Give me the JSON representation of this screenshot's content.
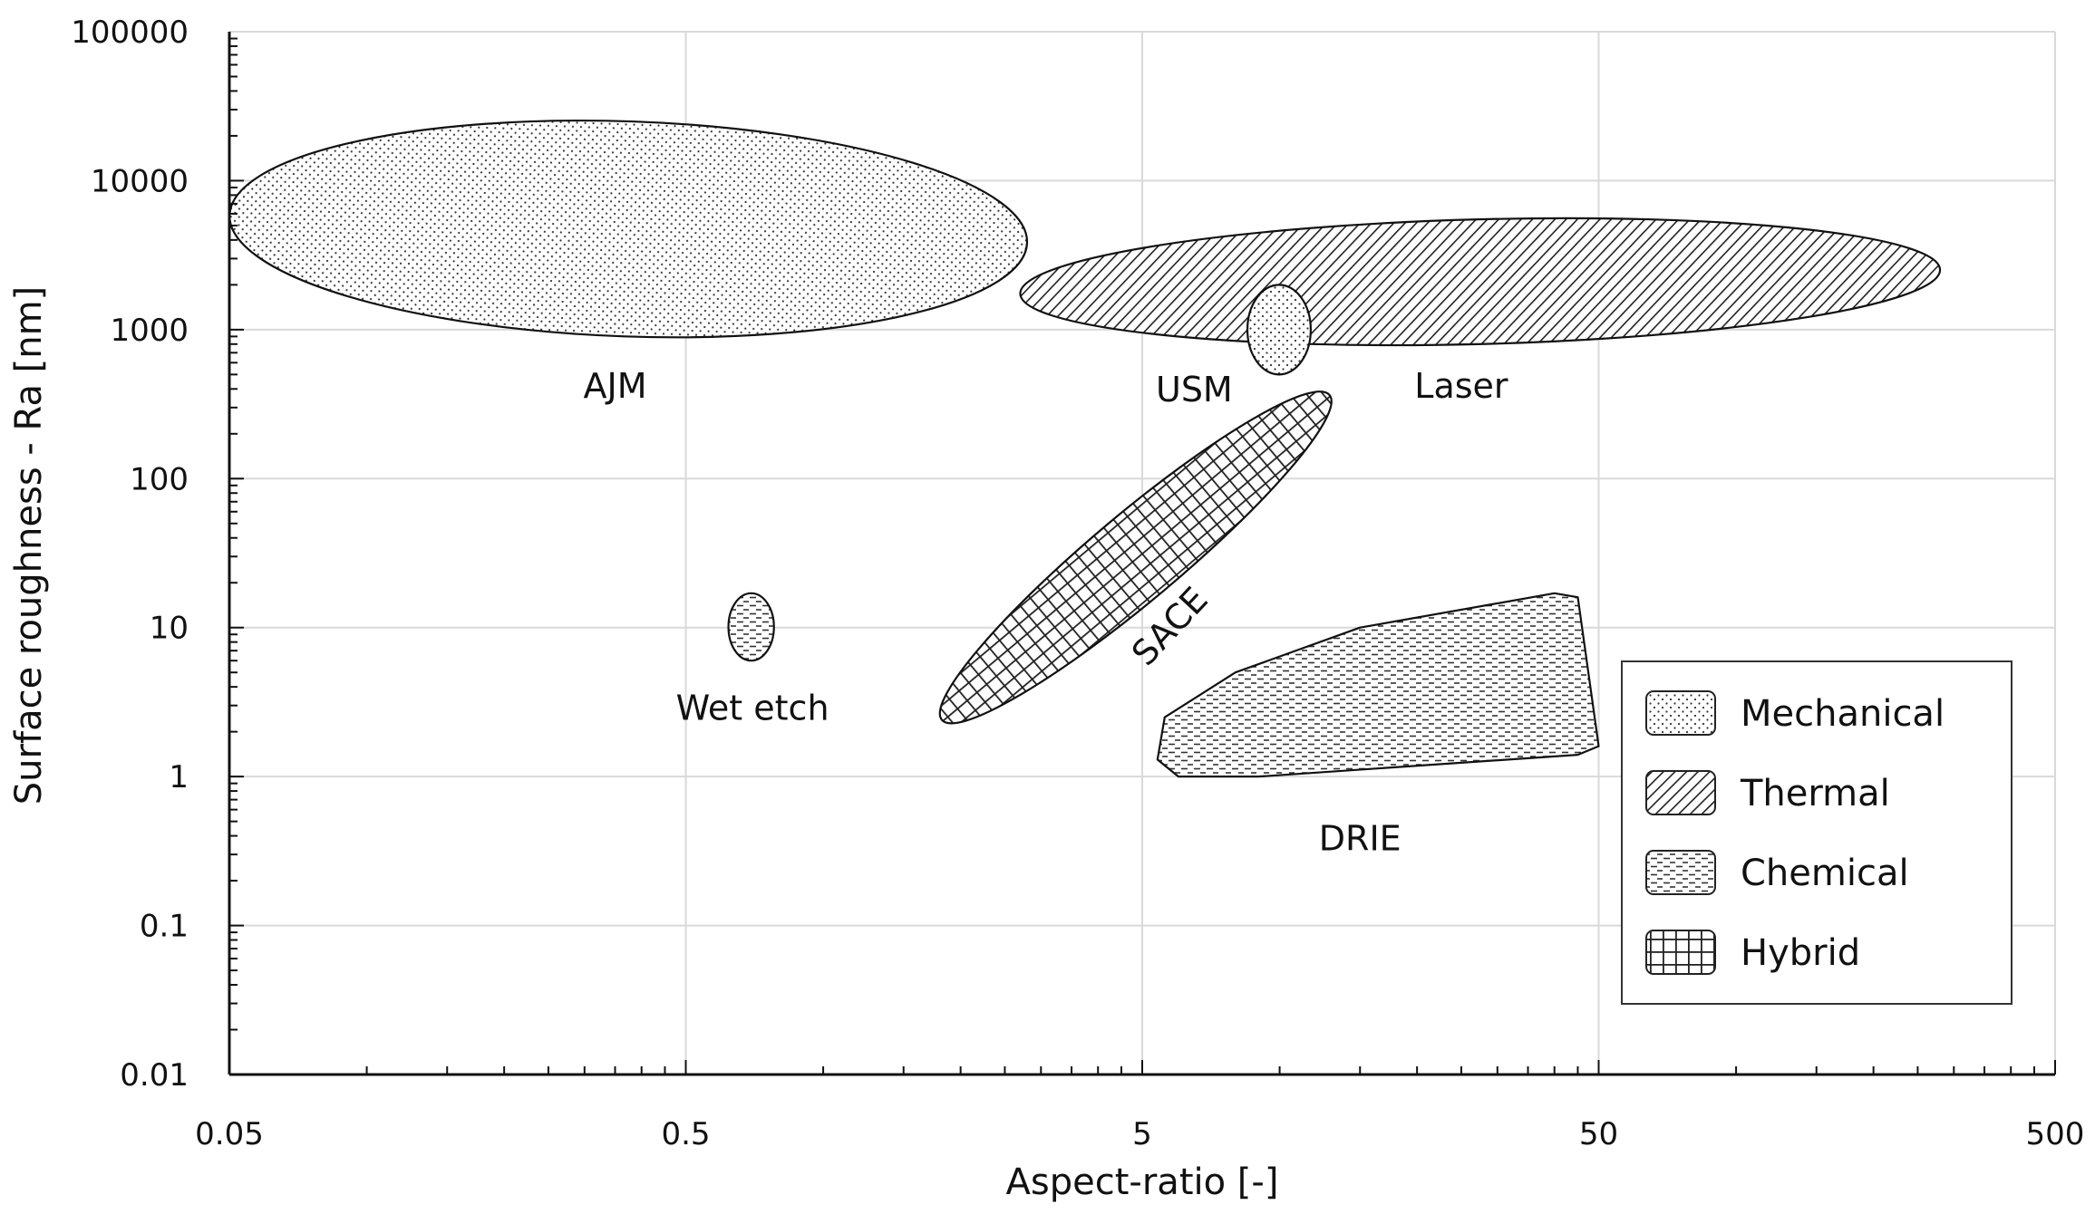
{
  "chart_data": {
    "type": "scatter",
    "title": "",
    "xlabel": "Aspect-ratio [-]",
    "ylabel": "Surface roughness - Ra [nm]",
    "x_scale": "log",
    "y_scale": "log",
    "xlim": [
      0.05,
      500
    ],
    "ylim": [
      0.01,
      100000
    ],
    "x_ticks": [
      0.05,
      0.5,
      5,
      50,
      500
    ],
    "x_tick_labels": [
      "0.05",
      "0.5",
      "5",
      "50",
      "500"
    ],
    "y_ticks": [
      0.01,
      0.1,
      1,
      10,
      100,
      1000,
      10000,
      100000
    ],
    "y_tick_labels": [
      "0.01",
      "0.1",
      "1",
      "10",
      "100",
      "1000",
      "10000",
      "100000"
    ],
    "grid": true,
    "legend": {
      "position": "bottom-right",
      "entries": [
        {
          "name": "Mechanical",
          "pattern": "dots"
        },
        {
          "name": "Thermal",
          "pattern": "diagonal"
        },
        {
          "name": "Chemical",
          "pattern": "dashes"
        },
        {
          "name": "Hybrid",
          "pattern": "grid"
        }
      ]
    },
    "regions": [
      {
        "label": "AJM",
        "category": "Mechanical",
        "shape": "ellipse",
        "aspect_ratio_range": [
          0.05,
          2.8
        ],
        "roughness_range_nm": [
          900,
          25000
        ]
      },
      {
        "label": "Laser",
        "category": "Thermal",
        "shape": "ellipse",
        "aspect_ratio_range": [
          2.7,
          280
        ],
        "roughness_range_nm": [
          800,
          5500
        ]
      },
      {
        "label": "USM",
        "category": "Mechanical",
        "shape": "ellipse",
        "aspect_ratio_range": [
          8.5,
          11.7
        ],
        "roughness_range_nm": [
          500,
          2000
        ]
      },
      {
        "label": "SACE",
        "category": "Hybrid",
        "shape": "ellipse",
        "aspect_ratio_range": [
          1.8,
          13
        ],
        "roughness_range_nm": [
          2.5,
          350
        ]
      },
      {
        "label": "Wet etch",
        "category": "Chemical",
        "shape": "ellipse",
        "aspect_ratio_range": [
          0.62,
          0.78
        ],
        "roughness_range_nm": [
          6,
          17
        ]
      },
      {
        "label": "DRIE",
        "category": "Chemical",
        "shape": "polygon",
        "vertices": [
          [
            5.6,
            2.5
          ],
          [
            8,
            5
          ],
          [
            15,
            10
          ],
          [
            40,
            17
          ],
          [
            45,
            16
          ],
          [
            50,
            1.6
          ],
          [
            45,
            1.4
          ],
          [
            9,
            1
          ],
          [
            6,
            1
          ],
          [
            5.4,
            1.3
          ]
        ]
      }
    ]
  }
}
